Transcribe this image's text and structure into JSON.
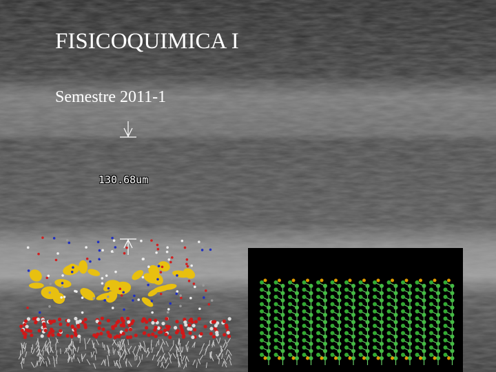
{
  "slide": {
    "title": "FISICOQUIMICA I",
    "subtitle": "Semestre 2011-1",
    "scale_label": "130.68um"
  }
}
